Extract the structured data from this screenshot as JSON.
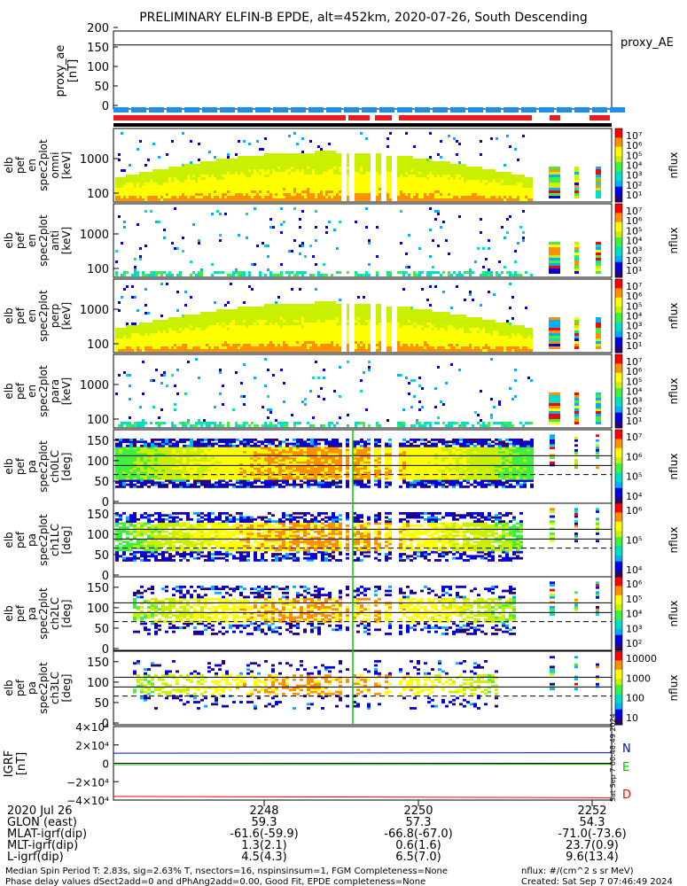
{
  "title": "PRELIMINARY ELFIN-B EPDE, alt=452km, 2020-07-26, South Descending",
  "colors": {
    "ae_line": "#000000",
    "bar_blue": "#1e8fe8",
    "bar_red": "#e81c1c",
    "bar_black": "#000000",
    "grf_n": "#0000ff",
    "grf_e": "#00c000",
    "grf_d": "#ff0000",
    "colormap": [
      "#2b0070",
      "#0000e0",
      "#00b0ff",
      "#00e0c0",
      "#40f040",
      "#c8f000",
      "#ffff00",
      "#ff9000",
      "#ff0000"
    ]
  },
  "proxy_ae": {
    "ylabel": [
      "proxy_ae",
      "[nT]"
    ],
    "ticks": [
      "200",
      "150",
      "100",
      "50",
      "0"
    ],
    "legend": "proxy_AE",
    "value": 155
  },
  "energy_panels": [
    {
      "label": [
        "elb",
        "pef",
        "en",
        "spec2plot",
        "omni",
        "[keV]"
      ],
      "ticks": [
        "1000",
        "100"
      ],
      "cb_ticks": [
        "10⁷",
        "10⁶",
        "10⁵",
        "10⁴",
        "10³",
        "10²",
        "10¹"
      ],
      "cb_label": "nflux"
    },
    {
      "label": [
        "elb",
        "pef",
        "en",
        "spec2plot",
        "anti",
        "[keV]"
      ],
      "ticks": [
        "1000",
        "100"
      ],
      "cb_ticks": [
        "10⁷",
        "10⁶",
        "10⁵",
        "10⁴",
        "10³",
        "10²",
        "10¹"
      ],
      "cb_label": "nflux"
    },
    {
      "label": [
        "elb",
        "pef",
        "en",
        "spec2plot",
        "perp",
        "[keV]"
      ],
      "ticks": [
        "1000",
        "100"
      ],
      "cb_ticks": [
        "10⁷",
        "10⁶",
        "10⁵",
        "10⁴",
        "10³",
        "10²",
        "10¹"
      ],
      "cb_label": "nflux"
    },
    {
      "label": [
        "elb",
        "pef",
        "en",
        "spec2plot",
        "para",
        "[keV]"
      ],
      "ticks": [
        "1000",
        "100"
      ],
      "cb_ticks": [
        "10⁷",
        "10⁶",
        "10⁵",
        "10⁴",
        "10³",
        "10²",
        "10¹"
      ],
      "cb_label": "nflux"
    }
  ],
  "pa_panels": [
    {
      "label": [
        "elb",
        "pef",
        "pa",
        "spec2plot",
        "ch0LC",
        "[deg]"
      ],
      "ticks": [
        "150",
        "100",
        "50",
        "0"
      ],
      "cb_ticks": [
        "10⁷",
        "10⁶",
        "10⁵",
        "10⁴"
      ],
      "cb_label": "nflux"
    },
    {
      "label": [
        "elb",
        "pef",
        "pa",
        "spec2plot",
        "ch1LC",
        "[deg]"
      ],
      "ticks": [
        "150",
        "100",
        "50",
        "0"
      ],
      "cb_ticks": [
        "10⁶",
        "10⁵",
        "10⁴"
      ],
      "cb_label": "nflux"
    },
    {
      "label": [
        "elb",
        "pef",
        "pa",
        "spec2plot",
        "ch2LC",
        "[deg]"
      ],
      "ticks": [
        "150",
        "100",
        "50",
        "0"
      ],
      "cb_ticks": [
        "10⁶",
        "10⁵",
        "10⁴",
        "10³",
        "10²"
      ],
      "cb_label": "nflux"
    },
    {
      "label": [
        "elb",
        "pef",
        "pa",
        "spec2plot",
        "ch3LC",
        "[deg]"
      ],
      "ticks": [
        "150",
        "100",
        "50",
        "0"
      ],
      "cb_ticks": [
        "10000",
        "1000",
        "100",
        "10"
      ],
      "cb_label": "nflux"
    }
  ],
  "grf": {
    "ylabel": [
      "IGRF",
      "[nT]"
    ],
    "ticks": [
      "4×10⁴",
      "2×10⁴",
      "0",
      "−2×10⁴",
      "−4×10⁴"
    ],
    "legend": [
      "N",
      "E",
      "D"
    ],
    "side_text": "Sat Sep  7 00:48:49 2024"
  },
  "axis": {
    "row_labels": [
      "2020 Jul 26",
      "GLON (east)",
      "MLAT-igrf(dip)",
      "MLT-igrf(dip)",
      "L-igrf(dip)"
    ],
    "columns": [
      {
        "time": "2248",
        "glon": "59.3",
        "mlat": "-61.6(-59.9)",
        "mlt": "1.3(2.1)",
        "l": "4.5(4.3)"
      },
      {
        "time": "2250",
        "glon": "57.3",
        "mlat": "-66.8(-67.0)",
        "mlt": "0.6(1.6)",
        "l": "6.5(7.0)"
      },
      {
        "time": "2252",
        "glon": "54.3",
        "mlat": "-71.0(-73.6)",
        "mlt": "23.7(0.9)",
        "l": "9.6(13.4)"
      }
    ]
  },
  "footer": {
    "line1": "Median Spin Period T: 2.83s, sig=2.63% T, nsectors=16, nspinsinsum=1, FGM Completeness=None",
    "line2": "Phase delay values dSect2add=0 and dPhAng2add=0.00, Good Fit, EPDE completeness=None",
    "right1": "nflux: #/(cm^2 s sr MeV)",
    "right2": "Created: Sat Sep  7 07:46:49 2024"
  },
  "chart_data": {
    "type": "heatmap",
    "title": "PRELIMINARY ELFIN-B EPDE, alt=452km, 2020-07-26, South Descending",
    "x_ticks": [
      "2248",
      "2250",
      "2252"
    ],
    "panels": [
      {
        "name": "proxy_ae",
        "type": "line",
        "ylim": [
          0,
          200
        ],
        "value": 155
      },
      {
        "name": "omni",
        "type": "heatmap",
        "ylim_keV": [
          50,
          7000
        ],
        "log": true
      },
      {
        "name": "anti",
        "type": "heatmap",
        "ylim_keV": [
          50,
          7000
        ],
        "log": true
      },
      {
        "name": "perp",
        "type": "heatmap",
        "ylim_keV": [
          50,
          7000
        ],
        "log": true
      },
      {
        "name": "para",
        "type": "heatmap",
        "ylim_keV": [
          50,
          7000
        ],
        "log": true
      },
      {
        "name": "ch0LC",
        "type": "heatmap",
        "ylim_deg": [
          0,
          180
        ]
      },
      {
        "name": "ch1LC",
        "type": "heatmap",
        "ylim_deg": [
          0,
          180
        ]
      },
      {
        "name": "ch2LC",
        "type": "heatmap",
        "ylim_deg": [
          0,
          180
        ]
      },
      {
        "name": "ch3LC",
        "type": "heatmap",
        "ylim_deg": [
          0,
          180
        ]
      },
      {
        "name": "IGRF",
        "type": "line",
        "ylim": [
          -40000,
          40000
        ],
        "series": [
          {
            "name": "N",
            "values": [
              11000,
              11300,
              11500
            ]
          },
          {
            "name": "E",
            "values": [
              -1500,
              -1300,
              -1100
            ]
          },
          {
            "name": "D",
            "values": [
              -36000,
              -37000,
              -37500
            ]
          }
        ]
      }
    ]
  }
}
